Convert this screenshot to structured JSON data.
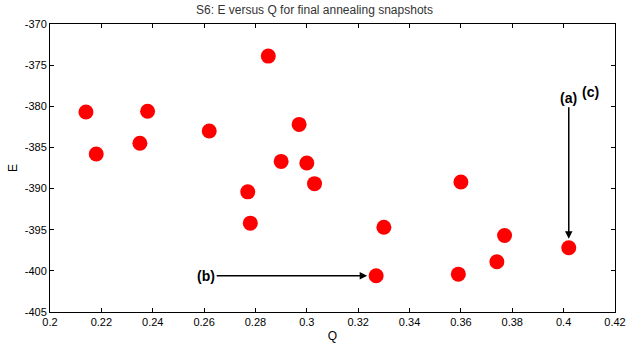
{
  "chart_data": {
    "type": "scatter",
    "title": "S6: E versus Q for final annealing snapshots",
    "x_label": "Q",
    "y_label": "E",
    "x": [
      0.214,
      0.218,
      0.235,
      0.238,
      0.262,
      0.285,
      0.297,
      0.3,
      0.29,
      0.303,
      0.277,
      0.278,
      0.33,
      0.327,
      0.36,
      0.359,
      0.377,
      0.374,
      0.402
    ],
    "values": [
      -380.7,
      -385.8,
      -384.5,
      -380.6,
      -383.0,
      -373.9,
      -382.2,
      -386.9,
      -386.7,
      -389.4,
      -390.4,
      -394.2,
      -394.7,
      -400.6,
      -389.2,
      -400.4,
      -395.7,
      -398.9,
      -397.2
    ],
    "color": "#ff0000",
    "marker": "circle",
    "xlim": [
      0.2,
      0.42
    ],
    "xticks": [
      0.2,
      0.22,
      0.24,
      0.26,
      0.28,
      0.3,
      0.32,
      0.34,
      0.36,
      0.38,
      0.4,
      0.42
    ],
    "ylim": [
      -405,
      -370
    ],
    "yticks": [
      -405,
      -400,
      -395,
      -390,
      -385,
      -380,
      -375,
      -370
    ],
    "grid": false,
    "annotations": [
      {
        "text": "(a)",
        "x": 0.402,
        "y": -397.2
      },
      {
        "text": "(b)",
        "x": 0.327,
        "y": -400.6
      },
      {
        "text": "(c)"
      }
    ]
  }
}
